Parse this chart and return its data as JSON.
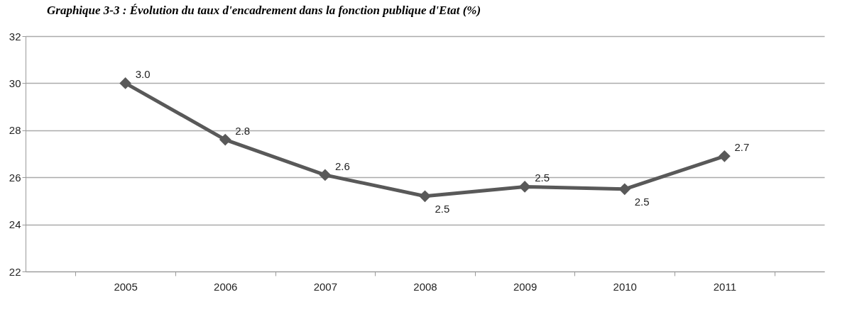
{
  "chart_data": {
    "type": "line",
    "title": "Graphique 3-3 : Évolution du taux d'encadrement dans la fonction publique d'Etat (%)",
    "categories": [
      "2005",
      "2006",
      "2007",
      "2008",
      "2009",
      "2010",
      "2011"
    ],
    "series": [
      {
        "color": "#595959",
        "values": [
          30.0,
          27.6,
          26.1,
          25.2,
          25.6,
          25.5,
          26.9
        ]
      }
    ],
    "annotations": [
      {
        "text": "3.0",
        "x": "2005",
        "y": 30.0
      },
      {
        "text": "2.8",
        "x": "2006",
        "y": 27.6
      },
      {
        "text": "2.6",
        "x": "2007",
        "y": 26.1
      },
      {
        "text": "2.5",
        "x": "2008",
        "y": 25.2
      },
      {
        "text": "2.5",
        "x": "2009",
        "y": 25.6
      },
      {
        "text": "2.5",
        "x": "2010",
        "y": 25.5
      },
      {
        "text": "2.7",
        "x": "2011",
        "y": 26.9
      }
    ],
    "ylim": [
      22,
      32
    ],
    "yticks": [
      22,
      24,
      26,
      28,
      30,
      32
    ],
    "grid": "y",
    "marker": "diamond",
    "line_style": "solid",
    "legend": false
  }
}
